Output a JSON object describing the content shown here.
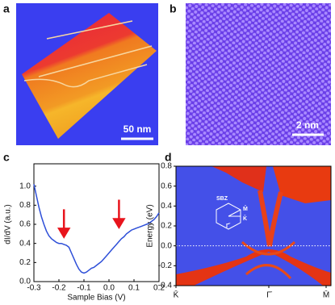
{
  "figure": {
    "panel_labels": [
      "a",
      "b",
      "c",
      "d"
    ],
    "scale_bars": [
      "50 nm",
      "2 nm"
    ],
    "inset": {
      "title": "SBZ",
      "labels": [
        "M̄",
        "K̄",
        "Γ̄"
      ]
    }
  },
  "chart_data": [
    {
      "type": "line",
      "xlabel": "Sample Bias (V)",
      "ylabel": "dI/dV (a.u.)",
      "xlim": [
        -0.3,
        0.2
      ],
      "ylim": [
        0,
        1.2
      ],
      "xticks": [
        -0.3,
        -0.2,
        -0.1,
        {
          "value": 0,
          "label": "0.0"
        },
        0.1,
        0.2
      ],
      "yticks": [
        {
          "value": 0,
          "label": "0.0"
        },
        0.2,
        0.4,
        0.6,
        0.8,
        {
          "value": 1,
          "label": "1.0"
        }
      ],
      "x": [
        -0.3,
        -0.29,
        -0.28,
        -0.27,
        -0.26,
        -0.25,
        -0.24,
        -0.23,
        -0.22,
        -0.21,
        -0.2,
        -0.19,
        -0.18,
        -0.17,
        -0.16,
        -0.15,
        -0.14,
        -0.13,
        -0.12,
        -0.11,
        -0.1,
        -0.09,
        -0.08,
        -0.07,
        -0.06,
        -0.05,
        -0.04,
        -0.03,
        -0.02,
        -0.01,
        0,
        0.01,
        0.02,
        0.03,
        0.04,
        0.05,
        0.06,
        0.07,
        0.08,
        0.09,
        0.1,
        0.11,
        0.12,
        0.13,
        0.14,
        0.15,
        0.16,
        0.17,
        0.18,
        0.19,
        0.2
      ],
      "series": [
        {
          "color": "#2e4fd8",
          "values": [
            1.02,
            0.9,
            0.78,
            0.68,
            0.6,
            0.53,
            0.48,
            0.45,
            0.43,
            0.41,
            0.4,
            0.4,
            0.39,
            0.38,
            0.36,
            0.3,
            0.24,
            0.18,
            0.13,
            0.1,
            0.09,
            0.1,
            0.12,
            0.14,
            0.15,
            0.17,
            0.19,
            0.21,
            0.24,
            0.27,
            0.3,
            0.33,
            0.36,
            0.39,
            0.42,
            0.45,
            0.47,
            0.5,
            0.52,
            0.54,
            0.55,
            0.56,
            0.57,
            0.58,
            0.59,
            0.6,
            0.61,
            0.63,
            0.65,
            0.68,
            0.72
          ]
        }
      ],
      "arrows": {
        "x": [
          -0.18,
          0.04
        ],
        "y": [
          0.47,
          0.57
        ],
        "color": "#e8141c"
      }
    },
    {
      "type": "band-map",
      "ylabel": "Energy (eV)",
      "categories": [
        "K̄",
        "Γ̄",
        "M̄"
      ],
      "ylim": [
        -0.4,
        0.8
      ],
      "yticks": [
        0.8,
        0.6,
        0.4,
        0.2,
        {
          "value": 0,
          "label": "0.0"
        },
        -0.2,
        -0.4
      ],
      "fermi_level": 0
    }
  ]
}
